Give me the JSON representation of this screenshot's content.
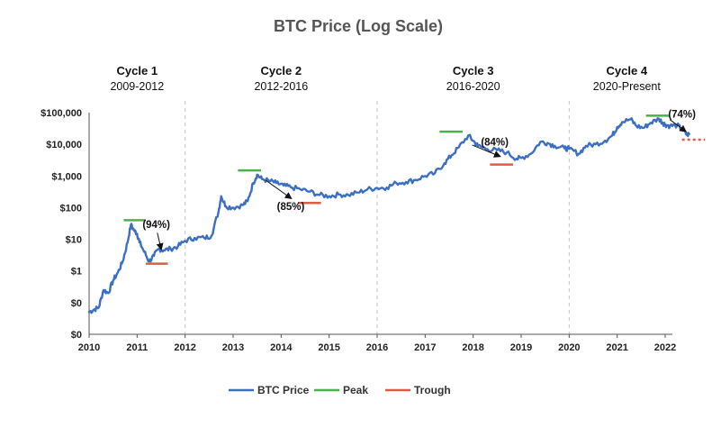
{
  "chart_data": {
    "type": "line",
    "title": "BTC Price (Log Scale)",
    "y_scale": "log",
    "ylim": [
      0.01,
      100000
    ],
    "xlim": [
      2010,
      2022
    ],
    "y_ticks": [
      {
        "value": 0.01,
        "label": "$0"
      },
      {
        "value": 0.1,
        "label": "$0"
      },
      {
        "value": 1,
        "label": "$1"
      },
      {
        "value": 10,
        "label": "$10"
      },
      {
        "value": 100,
        "label": "$100"
      },
      {
        "value": 1000,
        "label": "$1,000"
      },
      {
        "value": 10000,
        "label": "$10,000"
      },
      {
        "value": 100000,
        "label": "$100,000"
      }
    ],
    "x_ticks": [
      "2010",
      "2011",
      "2012",
      "2013",
      "2014",
      "2015",
      "2016",
      "2017",
      "2018",
      "2019",
      "2020",
      "2021",
      "2022"
    ],
    "grid": false,
    "cycle_dividers": [
      2012,
      2016,
      2020
    ],
    "cycles": [
      {
        "name": "Cycle 1",
        "range": "2009-2012",
        "center": 2011
      },
      {
        "name": "Cycle 2",
        "range": "2012-2016",
        "center": 2014
      },
      {
        "name": "Cycle 3",
        "range": "2016-2020",
        "center": 2018
      },
      {
        "name": "Cycle 4",
        "range": "2020-Present",
        "center": 2021.2
      }
    ],
    "series": [
      {
        "name": "BTC Price",
        "color": "#3b6fc4",
        "points": [
          [
            2010.0,
            0.05
          ],
          [
            2010.1,
            0.06
          ],
          [
            2010.2,
            0.07
          ],
          [
            2010.3,
            0.25
          ],
          [
            2010.4,
            0.2
          ],
          [
            2010.5,
            0.5
          ],
          [
            2010.6,
            0.9
          ],
          [
            2010.7,
            2
          ],
          [
            2010.8,
            8
          ],
          [
            2010.87,
            29
          ],
          [
            2010.95,
            18
          ],
          [
            2011.0,
            15
          ],
          [
            2011.05,
            8
          ],
          [
            2011.15,
            4
          ],
          [
            2011.25,
            2
          ],
          [
            2011.35,
            3
          ],
          [
            2011.45,
            5
          ],
          [
            2011.55,
            4.5
          ],
          [
            2011.7,
            5
          ],
          [
            2011.85,
            6
          ],
          [
            2012.0,
            9
          ],
          [
            2012.2,
            11
          ],
          [
            2012.4,
            11
          ],
          [
            2012.55,
            13
          ],
          [
            2012.7,
            80
          ],
          [
            2012.75,
            230
          ],
          [
            2012.85,
            110
          ],
          [
            2013.0,
            100
          ],
          [
            2013.2,
            120
          ],
          [
            2013.3,
            160
          ],
          [
            2013.42,
            600
          ],
          [
            2013.5,
            1100
          ],
          [
            2013.6,
            800
          ],
          [
            2013.75,
            700
          ],
          [
            2013.9,
            600
          ],
          [
            2014.05,
            500
          ],
          [
            2014.2,
            440
          ],
          [
            2014.4,
            380
          ],
          [
            2014.6,
            320
          ],
          [
            2014.8,
            250
          ],
          [
            2015.0,
            230
          ],
          [
            2015.2,
            260
          ],
          [
            2015.4,
            250
          ],
          [
            2015.6,
            300
          ],
          [
            2015.8,
            380
          ],
          [
            2016.0,
            420
          ],
          [
            2016.2,
            430
          ],
          [
            2016.4,
            600
          ],
          [
            2016.6,
            650
          ],
          [
            2016.8,
            750
          ],
          [
            2017.0,
            1000
          ],
          [
            2017.2,
            1200
          ],
          [
            2017.4,
            2500
          ],
          [
            2017.55,
            4500
          ],
          [
            2017.7,
            8000
          ],
          [
            2017.9,
            19000
          ],
          [
            2018.0,
            13000
          ],
          [
            2018.1,
            9000
          ],
          [
            2018.3,
            7000
          ],
          [
            2018.5,
            6500
          ],
          [
            2018.7,
            5500
          ],
          [
            2018.9,
            3500
          ],
          [
            2019.0,
            3700
          ],
          [
            2019.2,
            5000
          ],
          [
            2019.4,
            12000
          ],
          [
            2019.55,
            11000
          ],
          [
            2019.7,
            9000
          ],
          [
            2019.9,
            7500
          ],
          [
            2020.0,
            7200
          ],
          [
            2020.2,
            5000
          ],
          [
            2020.35,
            9000
          ],
          [
            2020.55,
            10000
          ],
          [
            2020.75,
            13000
          ],
          [
            2020.9,
            19000
          ],
          [
            2021.0,
            35000
          ],
          [
            2021.1,
            50000
          ],
          [
            2021.28,
            62000
          ],
          [
            2021.4,
            38000
          ],
          [
            2021.55,
            33000
          ],
          [
            2021.7,
            48000
          ],
          [
            2021.87,
            64000
          ],
          [
            2021.95,
            48000
          ],
          [
            2022.0,
            42000
          ],
          [
            2022.1,
            38000
          ],
          [
            2022.25,
            40000
          ],
          [
            2022.35,
            30000
          ],
          [
            2022.45,
            20000
          ],
          [
            2022.5,
            21000
          ]
        ]
      }
    ],
    "peaks": [
      {
        "x_from": 2010.72,
        "x_to": 2011.18,
        "y": 40
      },
      {
        "x_from": 2013.1,
        "x_to": 2013.58,
        "y": 1500
      },
      {
        "x_from": 2017.3,
        "x_to": 2017.78,
        "y": 25000
      },
      {
        "x_from": 2021.6,
        "x_to": 2022.08,
        "y": 80000
      }
    ],
    "troughs": [
      {
        "x_from": 2011.18,
        "x_to": 2011.64,
        "y": 1.7,
        "dashed": false
      },
      {
        "x_from": 2014.35,
        "x_to": 2014.83,
        "y": 140,
        "dashed": false
      },
      {
        "x_from": 2018.35,
        "x_to": 2018.83,
        "y": 2300,
        "dashed": false
      },
      {
        "x_from": 2022.35,
        "x_to": 2022.83,
        "y": 14000,
        "dashed": true
      }
    ],
    "annotations": [
      {
        "label": "(94%)",
        "text_x": 2011.4,
        "text_y": 30,
        "arrow_from": [
          2011.42,
          16
        ],
        "arrow_to": [
          2011.5,
          5
        ]
      },
      {
        "label": "(85%)",
        "text_x": 2014.2,
        "text_y": 110,
        "arrow_from": [
          2013.68,
          730
        ],
        "arrow_to": [
          2014.2,
          200
        ]
      },
      {
        "label": "(84%)",
        "text_x": 2018.45,
        "text_y": 12000,
        "arrow_from": [
          2017.98,
          9500
        ],
        "arrow_to": [
          2018.55,
          4200
        ]
      },
      {
        "label": "(74%)",
        "text_x": 2022.35,
        "text_y": 90000,
        "arrow_from": [
          2022.1,
          60000
        ],
        "arrow_to": [
          2022.42,
          26000
        ]
      }
    ],
    "legend": {
      "position": "bottom",
      "entries": [
        {
          "label": "BTC Price",
          "color": "#3b6fc4"
        },
        {
          "label": "Peak",
          "color": "#4caf50"
        },
        {
          "label": "Trough",
          "color": "#e05a4a"
        }
      ]
    },
    "colors": {
      "price": "#3b6fc4",
      "peak": "#4caf50",
      "trough": "#e05a4a",
      "divider": "#b8c4d8",
      "axis": "#555555"
    }
  }
}
